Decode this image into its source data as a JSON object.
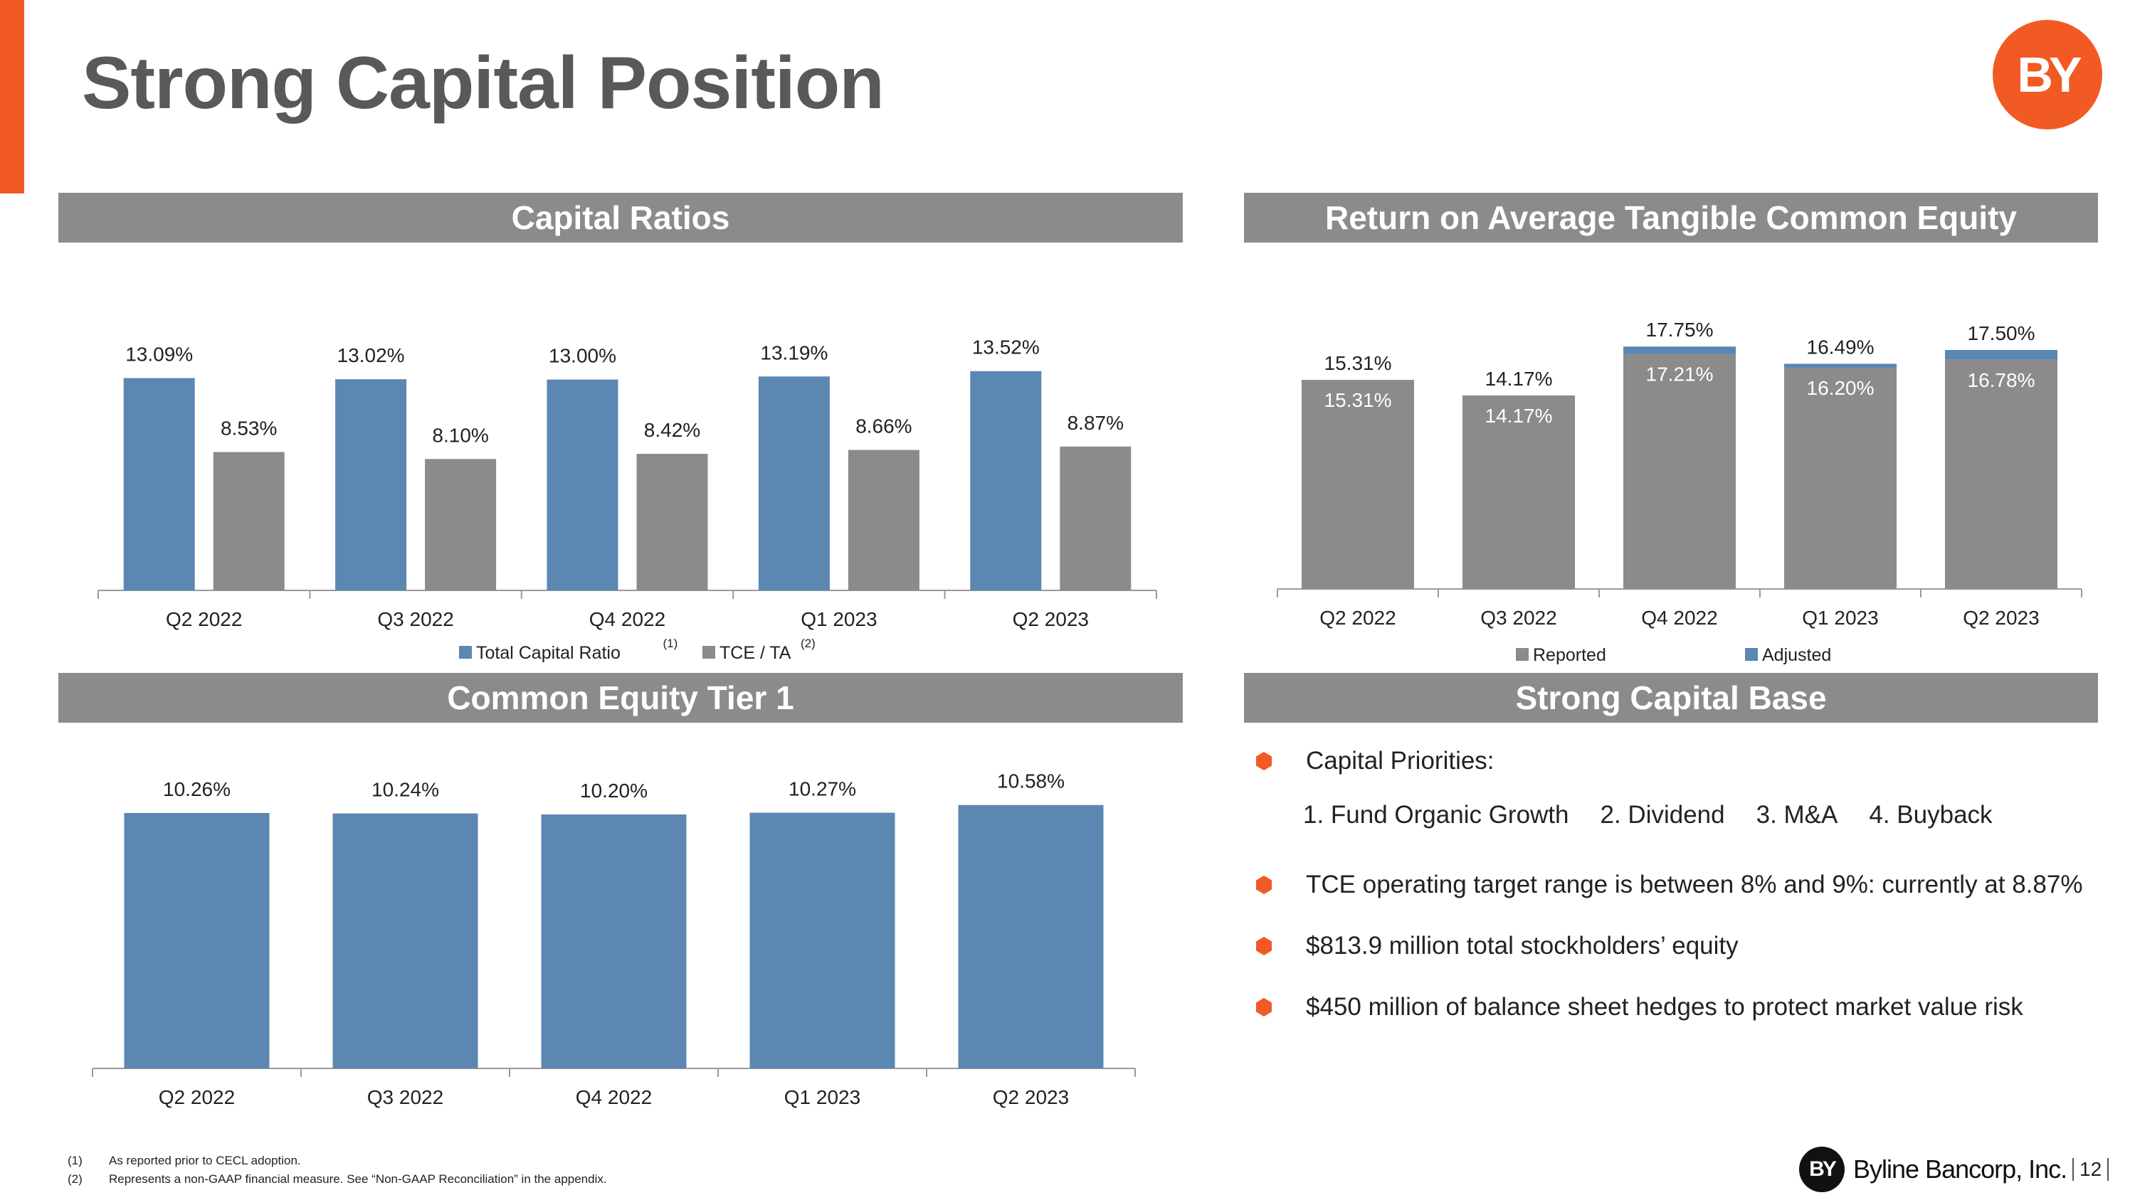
{
  "title": "Strong Capital Position",
  "logo_text": "BY",
  "colors": {
    "accent": "#f15a22",
    "blue": "#5b87b2",
    "gray": "#8b8b8b",
    "header": "#8b8b8b"
  },
  "sections": {
    "capital_ratios": "Capital Ratios",
    "rotce": "Return on Average Tangible Common Equity",
    "cet1": "Common Equity Tier 1",
    "capital_base": "Strong Capital Base"
  },
  "chart_data": [
    {
      "id": "capital_ratios",
      "type": "bar",
      "categories": [
        "Q2 2022",
        "Q3 2022",
        "Q4 2022",
        "Q1 2023",
        "Q2 2023"
      ],
      "series": [
        {
          "name": "Total Capital Ratio",
          "superscript": "(1)",
          "color": "#5b87b2",
          "values": [
            13.09,
            13.02,
            13.0,
            13.19,
            13.52
          ],
          "labels": [
            "13.09%",
            "13.02%",
            "13.00%",
            "13.19%",
            "13.52%"
          ]
        },
        {
          "name": "TCE / TA",
          "superscript": "(2)",
          "color": "#8b8b8b",
          "values": [
            8.53,
            8.1,
            8.42,
            8.66,
            8.87
          ],
          "labels": [
            "8.53%",
            "8.10%",
            "8.42%",
            "8.66%",
            "8.87%"
          ]
        }
      ],
      "legend_position": "bottom",
      "grid": false
    },
    {
      "id": "rotce",
      "type": "bar",
      "stacked": true,
      "categories": [
        "Q2 2022",
        "Q3 2022",
        "Q4 2022",
        "Q1 2023",
        "Q2 2023"
      ],
      "series": [
        {
          "name": "Reported",
          "color": "#8b8b8b",
          "values": [
            15.31,
            14.17,
            17.21,
            16.2,
            16.78
          ],
          "labels": [
            "15.31%",
            "14.17%",
            "17.21%",
            "16.20%",
            "16.78%"
          ]
        },
        {
          "name": "Adjusted",
          "color": "#5b87b2",
          "values": [
            15.31,
            14.17,
            17.75,
            16.49,
            17.5
          ],
          "labels": [
            "15.31%",
            "14.17%",
            "17.75%",
            "16.49%",
            "17.50%"
          ]
        }
      ],
      "legend_position": "bottom",
      "grid": false
    },
    {
      "id": "cet1",
      "type": "bar",
      "categories": [
        "Q2 2022",
        "Q3 2022",
        "Q4 2022",
        "Q1 2023",
        "Q2 2023"
      ],
      "series": [
        {
          "name": "Common Equity Tier 1",
          "color": "#5b87b2",
          "values": [
            10.26,
            10.24,
            10.2,
            10.27,
            10.58
          ],
          "labels": [
            "10.26%",
            "10.24%",
            "10.20%",
            "10.27%",
            "10.58%"
          ]
        }
      ],
      "legend_position": "none",
      "grid": false
    }
  ],
  "capital_base": {
    "priorities_heading": "Capital Priorities:",
    "priorities": [
      "1. Fund Organic Growth",
      "2. Dividend",
      "3. M&A",
      "4. Buyback"
    ],
    "bullets": [
      "TCE operating target range is between 8% and 9%: currently at 8.87%",
      "$813.9 million total stockholders’ equity",
      "$450 million of balance sheet hedges to protect market value risk"
    ]
  },
  "footnotes": [
    {
      "num": "(1)",
      "text": "As reported prior to CECL adoption."
    },
    {
      "num": "(2)",
      "text": "Represents a non-GAAP financial measure.  See “Non-GAAP Reconciliation” in the appendix."
    }
  ],
  "footer": {
    "logo_text": "BY",
    "company": "Byline Bancorp, Inc.",
    "page": "12"
  }
}
